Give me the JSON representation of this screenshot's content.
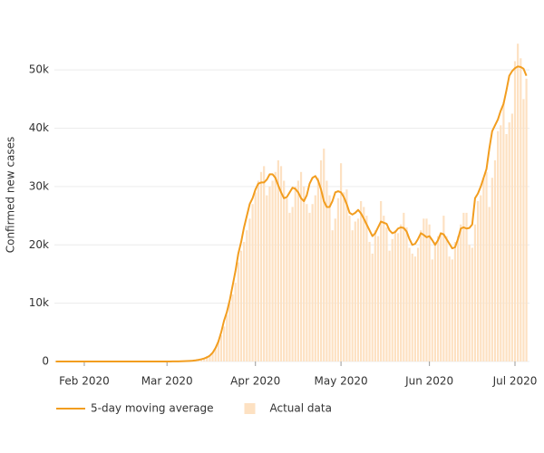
{
  "chart_data": {
    "type": "combo",
    "y_label": "Confirmed new cases",
    "categories": [
      null,
      null,
      null,
      null,
      null,
      null,
      null,
      null,
      null,
      null,
      "Feb 2020",
      null,
      null,
      null,
      null,
      null,
      null,
      null,
      null,
      null,
      null,
      null,
      null,
      null,
      null,
      null,
      null,
      null,
      null,
      null,
      null,
      null,
      null,
      null,
      null,
      null,
      null,
      null,
      null,
      "Mar 2020",
      null,
      null,
      null,
      null,
      null,
      null,
      null,
      null,
      null,
      null,
      null,
      null,
      null,
      null,
      null,
      null,
      null,
      null,
      null,
      null,
      null,
      null,
      null,
      null,
      null,
      null,
      null,
      null,
      null,
      null,
      "Apr 2020",
      null,
      null,
      null,
      null,
      null,
      null,
      null,
      null,
      null,
      null,
      null,
      null,
      null,
      null,
      null,
      null,
      null,
      null,
      null,
      null,
      null,
      null,
      null,
      null,
      null,
      null,
      null,
      null,
      null,
      "May 2020",
      null,
      null,
      null,
      null,
      null,
      null,
      null,
      null,
      null,
      null,
      null,
      null,
      null,
      null,
      null,
      null,
      null,
      null,
      null,
      null,
      null,
      null,
      null,
      null,
      null,
      null,
      null,
      null,
      null,
      null,
      "Jun 2020",
      null,
      null,
      null,
      null,
      null,
      null,
      null,
      null,
      null,
      null,
      null,
      null,
      null,
      null,
      null,
      null,
      null,
      null,
      null,
      null,
      null,
      null,
      null,
      null,
      null,
      null,
      null,
      null,
      null,
      "Jul 2020",
      null,
      null,
      null,
      null
    ],
    "series": [
      {
        "name": "5-day moving average",
        "type": "line",
        "color": "#f29d1f",
        "values": [
          0,
          0,
          0,
          0,
          0,
          0,
          0,
          0,
          0,
          0,
          0,
          0,
          0,
          0,
          0,
          0,
          0,
          0,
          0,
          0,
          0,
          0,
          0,
          0,
          0,
          0,
          0,
          0,
          0,
          0,
          0,
          0,
          0,
          0,
          0,
          0,
          0,
          0,
          0,
          5,
          8,
          12,
          18,
          25,
          35,
          50,
          70,
          100,
          140,
          200,
          280,
          380,
          520,
          700,
          1000,
          1500,
          2300,
          3400,
          5000,
          7000,
          8500,
          10500,
          13000,
          15500,
          18500,
          20500,
          23000,
          25000,
          27000,
          28000,
          29500,
          30500,
          30700,
          30700,
          31200,
          32100,
          32100,
          31500,
          30200,
          29000,
          28000,
          28200,
          29000,
          29800,
          29600,
          29000,
          28000,
          27500,
          28500,
          30500,
          31500,
          31800,
          31000,
          29500,
          27500,
          26500,
          26500,
          27500,
          29000,
          29200,
          29000,
          28200,
          27000,
          25500,
          25200,
          25500,
          26000,
          25400,
          24500,
          23500,
          22500,
          21500,
          22000,
          23000,
          24000,
          23800,
          23600,
          22500,
          22000,
          22200,
          22800,
          23000,
          22900,
          22300,
          21000,
          20000,
          20200,
          21000,
          22000,
          21700,
          21300,
          21500,
          20800,
          20000,
          20800,
          22000,
          21800,
          21000,
          20200,
          19400,
          19600,
          21000,
          22800,
          23000,
          22800,
          22900,
          23500,
          28000,
          28800,
          30000,
          31500,
          33000,
          36500,
          39500,
          40500,
          41500,
          43000,
          44200,
          46500,
          49000,
          49800,
          50300,
          50600,
          50500,
          50200,
          49000
        ]
      },
      {
        "name": "Actual data",
        "type": "bar",
        "color": "#fde1c2",
        "values": [
          1,
          0,
          1,
          0,
          2,
          0,
          0,
          0,
          0,
          1,
          1,
          0,
          0,
          0,
          0,
          2,
          0,
          0,
          0,
          0,
          1,
          0,
          0,
          0,
          0,
          0,
          0,
          0,
          0,
          0,
          0,
          0,
          0,
          0,
          3,
          0,
          0,
          1,
          3,
          3,
          20,
          25,
          30,
          50,
          70,
          80,
          130,
          120,
          190,
          300,
          420,
          510,
          560,
          940,
          1040,
          1500,
          2100,
          3500,
          4500,
          6000,
          8000,
          10000,
          11500,
          13500,
          17000,
          19000,
          20500,
          22500,
          24500,
          27000,
          29000,
          31000,
          32500,
          33500,
          28500,
          30000,
          31000,
          32500,
          34500,
          33500,
          31000,
          28000,
          25500,
          26500,
          30000,
          31000,
          32500,
          30000,
          27000,
          25500,
          27000,
          28500,
          31500,
          34500,
          36500,
          31000,
          28500,
          22500,
          24500,
          28000,
          34000,
          29000,
          29500,
          25000,
          22500,
          24000,
          24500,
          27500,
          26500,
          25000,
          20500,
          18500,
          22500,
          21500,
          27500,
          25000,
          23000,
          19000,
          21000,
          22500,
          22000,
          23500,
          25500,
          23000,
          19500,
          18500,
          18000,
          19500,
          22500,
          24500,
          24500,
          23500,
          17500,
          20500,
          21500,
          22000,
          25000,
          21500,
          18000,
          17500,
          20500,
          21500,
          23500,
          25500,
          25500,
          20000,
          19500,
          23500,
          27500,
          28500,
          31500,
          32500,
          26500,
          31500,
          34500,
          39500,
          40500,
          44500,
          39000,
          41000,
          42500,
          51500,
          54500,
          52000,
          45000,
          48500
        ]
      }
    ],
    "ylim": [
      0,
      55000
    ],
    "yticks": [
      0,
      {
        "value": 10000,
        "label": "10k"
      },
      {
        "value": 20000,
        "label": "20k"
      },
      {
        "value": 30000,
        "label": "30k"
      },
      {
        "value": 40000,
        "label": "40k"
      },
      {
        "value": 50000,
        "label": "50k"
      }
    ],
    "grid": true
  }
}
